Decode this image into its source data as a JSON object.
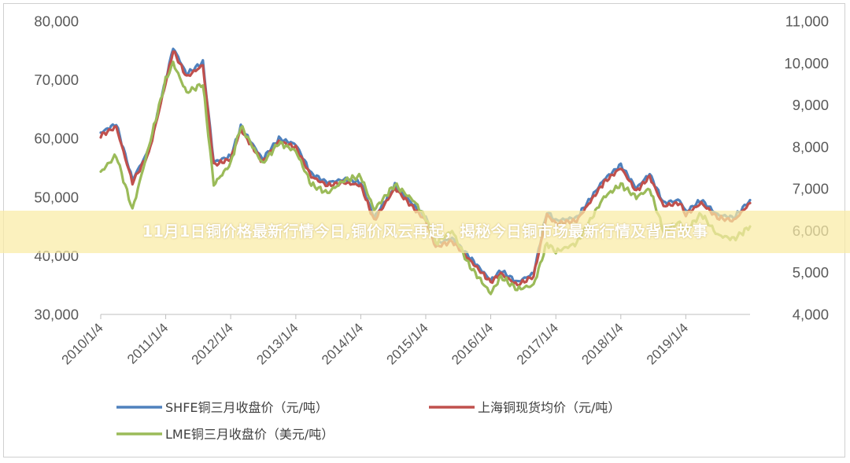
{
  "banner": {
    "title": "11月1日铜价格最新行情今日,铜价风云再起，揭秘今日铜市场最新行情及背后故事"
  },
  "chart_data": {
    "type": "line",
    "title": "",
    "x": [
      "2010/1/4",
      "2011/1/4",
      "2012/1/4",
      "2013/1/4",
      "2014/1/4",
      "2015/1/4",
      "2016/1/4",
      "2017/1/4",
      "2018/1/4",
      "2019/1/4"
    ],
    "y_left": {
      "range": [
        30000,
        80000
      ],
      "ticks": [
        "30,000",
        "40,000",
        "50,000",
        "60,000",
        "70,000",
        "80,000"
      ]
    },
    "y_right": {
      "range": [
        4000,
        11000
      ],
      "ticks": [
        "4,000",
        "5,000",
        "6,000",
        "7,000",
        "8,000",
        "9,000",
        "10,000",
        "11,000"
      ]
    },
    "grid": false,
    "legend_position": "bottom",
    "series": [
      {
        "name": "SHFE铜三月收盘价（元/吨）",
        "axis": "left",
        "color": "#4f81bd",
        "points": [
          [
            "2010/1/4",
            61000
          ],
          [
            "2010/4/1",
            62500
          ],
          [
            "2010/7/1",
            53000
          ],
          [
            "2010/10/1",
            58000
          ],
          [
            "2011/1/4",
            70000
          ],
          [
            "2011/2/15",
            75500
          ],
          [
            "2011/5/1",
            71000
          ],
          [
            "2011/8/1",
            73000
          ],
          [
            "2011/10/1",
            56000
          ],
          [
            "2012/1/4",
            57000
          ],
          [
            "2012/3/1",
            62000
          ],
          [
            "2012/7/1",
            56500
          ],
          [
            "2012/10/1",
            60000
          ],
          [
            "2013/1/4",
            59000
          ],
          [
            "2013/4/1",
            54000
          ],
          [
            "2013/7/1",
            52500
          ],
          [
            "2013/10/1",
            53000
          ],
          [
            "2014/1/4",
            52500
          ],
          [
            "2014/3/20",
            46500
          ],
          [
            "2014/7/15",
            52000
          ],
          [
            "2014/11/1",
            48500
          ],
          [
            "2015/1/4",
            46500
          ],
          [
            "2015/3/1",
            42000
          ],
          [
            "2015/6/1",
            43000
          ],
          [
            "2015/9/1",
            40000
          ],
          [
            "2016/1/4",
            35800
          ],
          [
            "2016/3/1",
            37500
          ],
          [
            "2016/6/1",
            35500
          ],
          [
            "2016/9/1",
            37000
          ],
          [
            "2016/11/15",
            47500
          ],
          [
            "2017/1/4",
            46000
          ],
          [
            "2017/5/1",
            46500
          ],
          [
            "2017/10/1",
            53000
          ],
          [
            "2018/1/4",
            55500
          ],
          [
            "2018/4/1",
            51500
          ],
          [
            "2018/6/15",
            54000
          ],
          [
            "2018/9/1",
            49000
          ],
          [
            "2018/12/1",
            49500
          ],
          [
            "2019/1/4",
            47500
          ],
          [
            "2019/4/1",
            49500
          ],
          [
            "2019/7/1",
            47000
          ],
          [
            "2019/10/1",
            46500
          ],
          [
            "2019/12/31",
            49500
          ]
        ]
      },
      {
        "name": "上海铜现货均价（元/吨）",
        "axis": "left",
        "color": "#c0504d",
        "points": [
          [
            "2010/1/4",
            60500
          ],
          [
            "2010/4/1",
            62000
          ],
          [
            "2010/7/1",
            52500
          ],
          [
            "2010/10/1",
            57500
          ],
          [
            "2011/1/4",
            69500
          ],
          [
            "2011/2/15",
            75000
          ],
          [
            "2011/5/1",
            70500
          ],
          [
            "2011/8/1",
            72500
          ],
          [
            "2011/10/1",
            55500
          ],
          [
            "2012/1/4",
            56500
          ],
          [
            "2012/3/1",
            61500
          ],
          [
            "2012/7/1",
            56000
          ],
          [
            "2012/10/1",
            59500
          ],
          [
            "2013/1/4",
            58500
          ],
          [
            "2013/4/1",
            53500
          ],
          [
            "2013/7/1",
            52000
          ],
          [
            "2013/10/1",
            52500
          ],
          [
            "2014/1/4",
            52000
          ],
          [
            "2014/3/20",
            46000
          ],
          [
            "2014/7/15",
            51500
          ],
          [
            "2014/11/1",
            48000
          ],
          [
            "2015/1/4",
            46000
          ],
          [
            "2015/3/1",
            41500
          ],
          [
            "2015/6/1",
            42500
          ],
          [
            "2015/9/1",
            39500
          ],
          [
            "2016/1/4",
            35500
          ],
          [
            "2016/3/1",
            37000
          ],
          [
            "2016/6/1",
            35000
          ],
          [
            "2016/9/1",
            36500
          ],
          [
            "2016/11/15",
            47000
          ],
          [
            "2017/1/4",
            45500
          ],
          [
            "2017/5/1",
            46000
          ],
          [
            "2017/10/1",
            52500
          ],
          [
            "2018/1/4",
            55000
          ],
          [
            "2018/4/1",
            51000
          ],
          [
            "2018/6/15",
            53500
          ],
          [
            "2018/9/1",
            48500
          ],
          [
            "2018/12/1",
            49000
          ],
          [
            "2019/1/4",
            47000
          ],
          [
            "2019/4/1",
            49000
          ],
          [
            "2019/7/1",
            46500
          ],
          [
            "2019/10/1",
            46000
          ],
          [
            "2019/12/31",
            49000
          ]
        ]
      },
      {
        "name": "LME铜三月收盘价（美元/吨）",
        "axis": "right",
        "color": "#9bbb59",
        "points": [
          [
            "2010/1/4",
            7400
          ],
          [
            "2010/4/1",
            7800
          ],
          [
            "2010/7/1",
            6500
          ],
          [
            "2010/10/1",
            8000
          ],
          [
            "2011/1/4",
            9600
          ],
          [
            "2011/2/15",
            10000
          ],
          [
            "2011/5/1",
            9300
          ],
          [
            "2011/8/1",
            9500
          ],
          [
            "2011/10/1",
            7100
          ],
          [
            "2012/1/4",
            7600
          ],
          [
            "2012/3/1",
            8500
          ],
          [
            "2012/7/1",
            7600
          ],
          [
            "2012/10/1",
            8100
          ],
          [
            "2013/1/4",
            7900
          ],
          [
            "2013/4/1",
            7100
          ],
          [
            "2013/7/1",
            6900
          ],
          [
            "2013/10/1",
            7200
          ],
          [
            "2014/1/4",
            7300
          ],
          [
            "2014/3/20",
            6500
          ],
          [
            "2014/7/15",
            7100
          ],
          [
            "2014/11/1",
            6700
          ],
          [
            "2015/1/4",
            6300
          ],
          [
            "2015/3/1",
            5700
          ],
          [
            "2015/6/1",
            6000
          ],
          [
            "2015/9/1",
            5200
          ],
          [
            "2016/1/4",
            4500
          ],
          [
            "2016/3/1",
            4900
          ],
          [
            "2016/6/1",
            4600
          ],
          [
            "2016/9/1",
            4700
          ],
          [
            "2016/11/15",
            5700
          ],
          [
            "2017/1/4",
            5500
          ],
          [
            "2017/5/1",
            5700
          ],
          [
            "2017/10/1",
            6800
          ],
          [
            "2018/1/4",
            7100
          ],
          [
            "2018/4/1",
            6800
          ],
          [
            "2018/6/15",
            7000
          ],
          [
            "2018/9/1",
            6000
          ],
          [
            "2018/12/1",
            6200
          ],
          [
            "2019/1/4",
            6000
          ],
          [
            "2019/4/1",
            6400
          ],
          [
            "2019/7/1",
            5900
          ],
          [
            "2019/10/1",
            5800
          ],
          [
            "2019/12/31",
            6100
          ]
        ]
      }
    ]
  }
}
